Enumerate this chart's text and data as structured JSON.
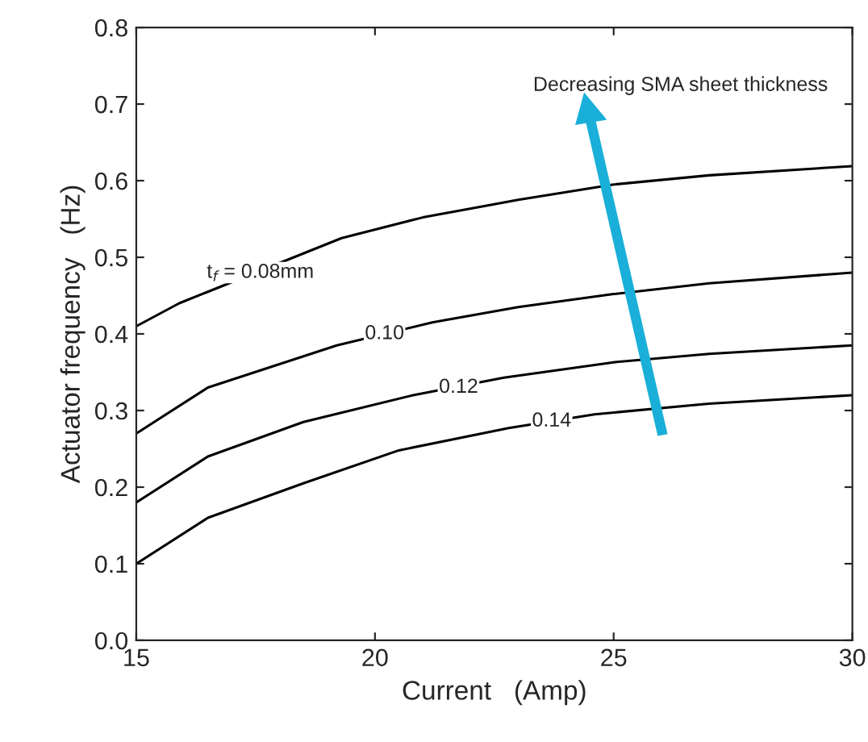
{
  "chart_data": {
    "type": "line",
    "xlabel": "Current   (Amp)",
    "ylabel": "Actuator frequency   (Hz)",
    "series": [
      {
        "color": "#000000",
        "x": [
          15,
          15.9,
          19.3,
          21,
          23,
          25,
          27,
          30
        ],
        "values": [
          0.41,
          0.44,
          0.525,
          0.552,
          0.575,
          0.595,
          0.607,
          0.619
        ]
      },
      {
        "color": "#000000",
        "x": [
          15,
          16.5,
          19.2,
          21.2,
          23,
          25,
          27,
          30
        ],
        "values": [
          0.27,
          0.33,
          0.385,
          0.415,
          0.435,
          0.452,
          0.466,
          0.48
        ]
      },
      {
        "color": "#000000",
        "x": [
          15,
          16.5,
          18.5,
          20.8,
          22.7,
          25,
          27,
          30
        ],
        "values": [
          0.18,
          0.24,
          0.285,
          0.32,
          0.343,
          0.363,
          0.374,
          0.385
        ]
      },
      {
        "color": "#000000",
        "x": [
          15,
          16.5,
          18.5,
          20.5,
          22.8,
          24.6,
          27,
          30
        ],
        "values": [
          0.1,
          0.16,
          0.205,
          0.248,
          0.277,
          0.295,
          0.309,
          0.32
        ]
      }
    ],
    "annotations": [
      {
        "text": "t$_{f}$ = 0.08mm",
        "x": 17.6,
        "y": 0.48
      },
      {
        "text": "0.10",
        "x": 20.2,
        "y": 0.4
      },
      {
        "text": "0.12",
        "x": 21.75,
        "y": 0.33
      },
      {
        "text": "0.14",
        "x": 23.7,
        "y": 0.286
      },
      "Decreasing SMA sheet thickness"
    ],
    "xlim": [
      15,
      30
    ],
    "xticks": [
      15,
      20,
      25,
      30
    ],
    "ylim": [
      0,
      0.8
    ],
    "yticks": [
      {
        "value": 0,
        "label": "0.0"
      },
      0.1,
      0.2,
      0.3,
      0.4,
      0.5,
      0.6,
      0.7,
      0.8
    ],
    "grid": false,
    "legend": false,
    "marker": "none",
    "line_style": "solid"
  }
}
